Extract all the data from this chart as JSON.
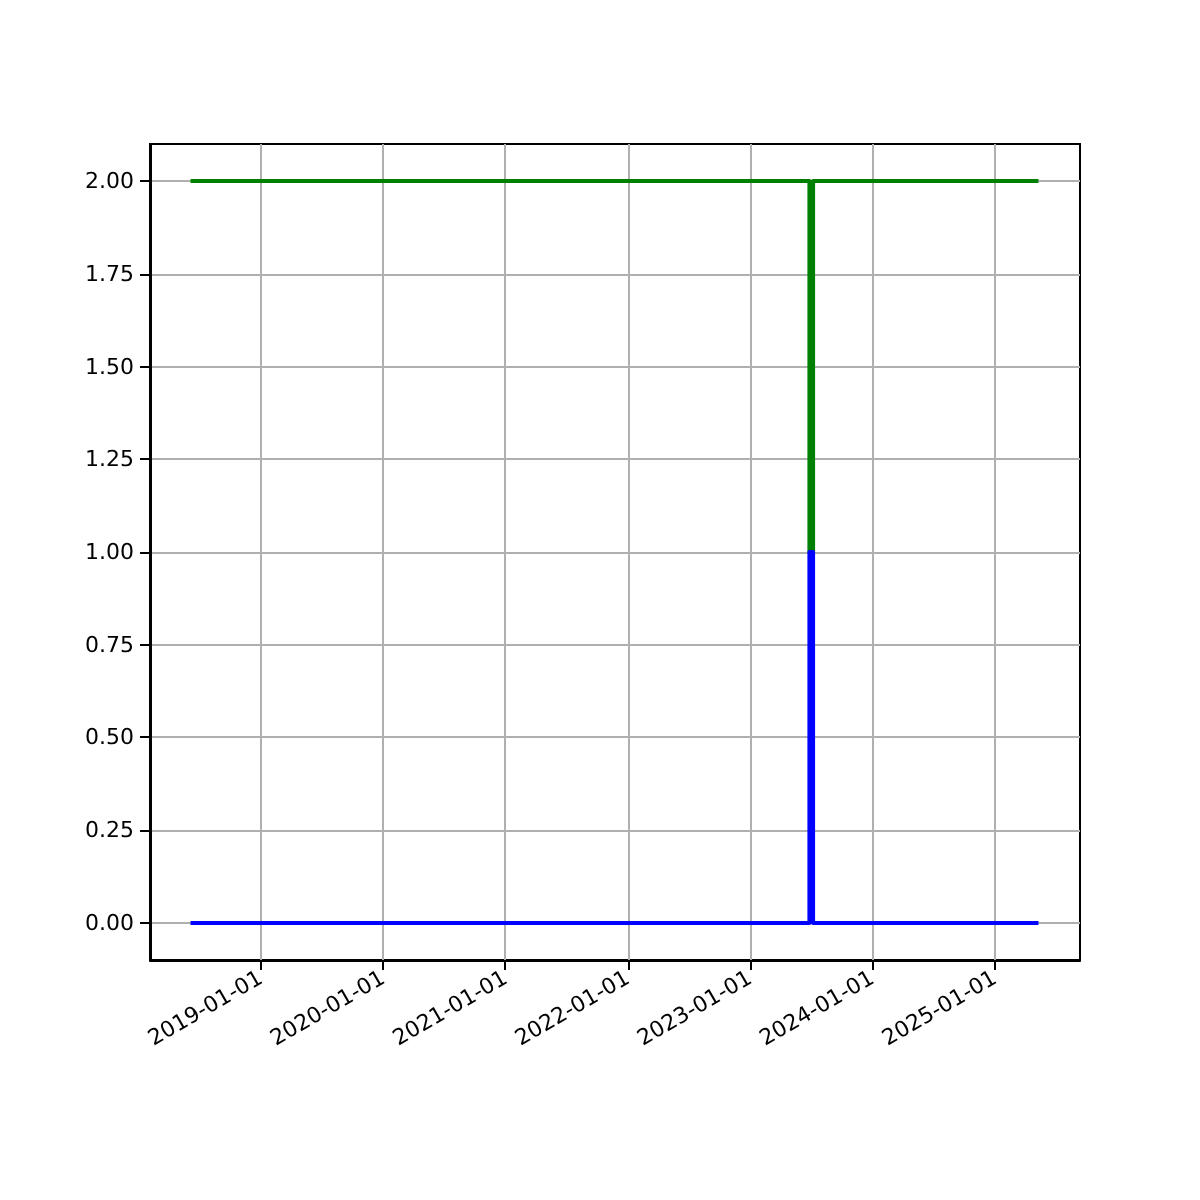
{
  "chart_data": {
    "type": "line",
    "series": [
      {
        "color": "#008000",
        "x": [
          "2018-06-06",
          "2023-06-28",
          "2023-06-28",
          "2023-07-09",
          "2023-07-09",
          "2025-05-12"
        ],
        "values": [
          2,
          2,
          1,
          1,
          2,
          2
        ]
      },
      {
        "color": "#0000ff",
        "x": [
          "2018-06-06",
          "2023-06-28",
          "2023-06-28",
          "2023-07-09",
          "2023-07-09",
          "2025-05-12"
        ],
        "values": [
          0,
          0,
          1,
          1,
          0,
          0
        ]
      }
    ],
    "xlim": [
      "2018-02-05",
      "2025-09-13"
    ],
    "xticks": [
      "2019-01-01",
      "2020-01-01",
      "2021-01-01",
      "2022-01-01",
      "2023-01-01",
      "2024-01-01",
      "2025-01-01"
    ],
    "ylim": [
      -0.1,
      2.1
    ],
    "yticks": [
      {
        "value": 0,
        "label": "0.00"
      },
      0.25,
      {
        "value": 0.5,
        "label": "0.50"
      },
      0.75,
      {
        "value": 1,
        "label": "1.00"
      },
      1.25,
      {
        "value": 1.5,
        "label": "1.50"
      },
      1.75,
      {
        "value": 2,
        "label": "2.00"
      }
    ],
    "grid": true,
    "marker": "none",
    "line_style": "solid"
  }
}
